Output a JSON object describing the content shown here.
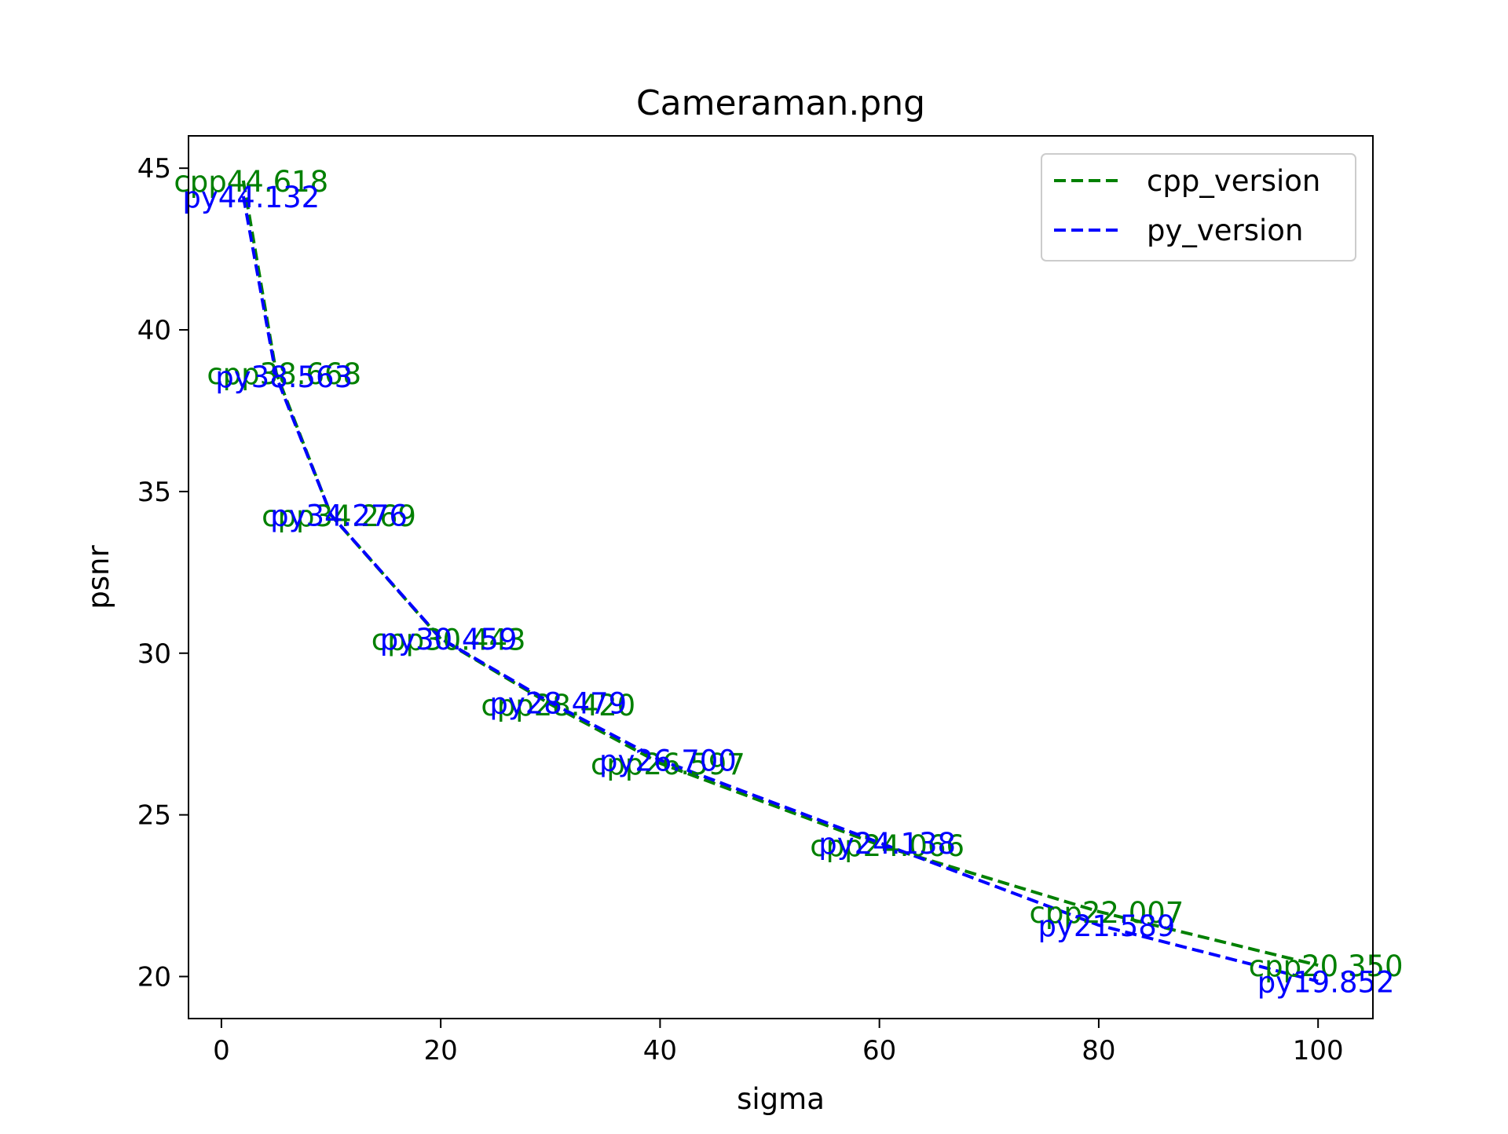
{
  "chart_data": {
    "type": "line",
    "title": "Cameraman.png",
    "xlabel": "sigma",
    "ylabel": "psnr",
    "xlim": [
      -3,
      105
    ],
    "ylim": [
      18.7,
      46
    ],
    "xticks": [
      0,
      20,
      40,
      60,
      80,
      100
    ],
    "yticks": [
      20,
      25,
      30,
      35,
      40,
      45
    ],
    "legend": {
      "placement": "upper-right"
    },
    "grid": false,
    "series": [
      {
        "name": "cpp_version",
        "color": "#008000",
        "dash": "dashed",
        "x": [
          2,
          5,
          10,
          20,
          30,
          40,
          60,
          80,
          100
        ],
        "y": [
          44.618,
          38.668,
          34.269,
          30.443,
          28.42,
          26.597,
          24.066,
          22.007,
          20.35
        ],
        "labels": [
          "cpp44.618",
          "cpp38.668",
          "cpp34.269",
          "cpp30.443",
          "cpp28.420",
          "cpp26.597",
          "cpp24.066",
          "cpp22.007",
          "cpp20.350"
        ]
      },
      {
        "name": "py_version",
        "color": "#0000ff",
        "dash": "dashed",
        "x": [
          2,
          5,
          10,
          20,
          30,
          40,
          60,
          80,
          100
        ],
        "y": [
          44.132,
          38.563,
          34.276,
          30.459,
          28.479,
          26.7,
          24.138,
          21.589,
          19.852
        ],
        "labels": [
          "py44.132",
          "py38.563",
          "py34.276",
          "py30.459",
          "py28.479",
          "py26.700",
          "py24.138",
          "py21.589",
          "py19.852"
        ]
      }
    ]
  }
}
